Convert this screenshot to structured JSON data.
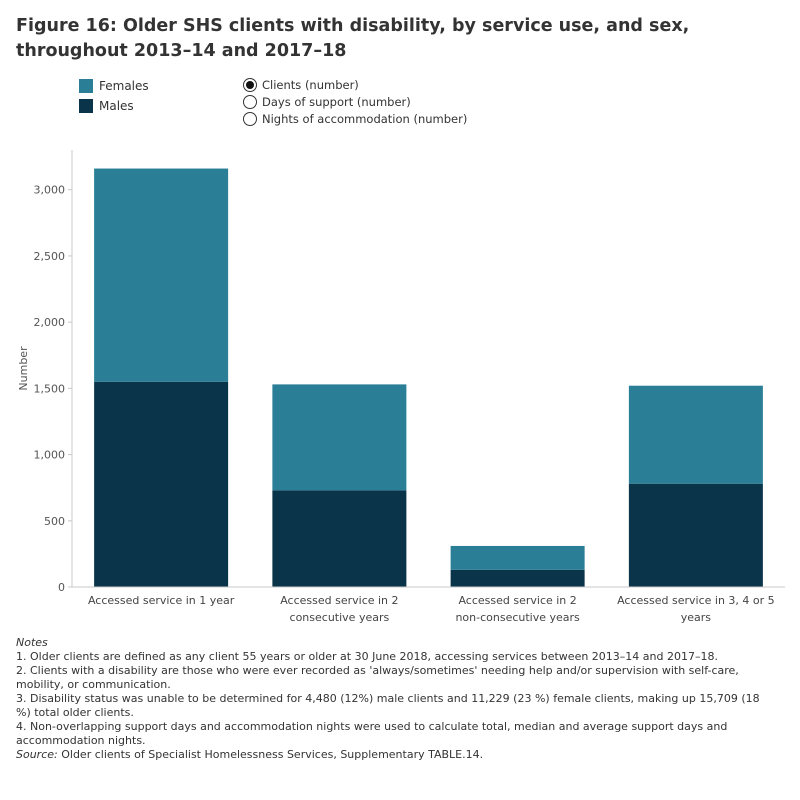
{
  "title": "Figure 16: Older SHS clients with disability, by service use, and sex, throughout 2013–14 and 2017–18",
  "legend": [
    {
      "label": "Females",
      "color": "#2a7f97"
    },
    {
      "label": "Males",
      "color": "#0a344a"
    }
  ],
  "measure_options": [
    {
      "label": "Clients (number)",
      "selected": true
    },
    {
      "label": "Days of support (number)",
      "selected": false
    },
    {
      "label": "Nights of accommodation (number)",
      "selected": false
    }
  ],
  "chart_data": {
    "type": "bar",
    "stacked": true,
    "categories": [
      [
        "Accessed service in 1 year"
      ],
      [
        "Accessed service in 2",
        "consecutive years"
      ],
      [
        "Accessed service in 2",
        "non-consecutive years"
      ],
      [
        "Accessed service in 3, 4 or 5",
        "years"
      ]
    ],
    "series": [
      {
        "name": "Males",
        "color": "#0a344a",
        "values": [
          1550,
          730,
          130,
          780
        ]
      },
      {
        "name": "Females",
        "color": "#2a7f97",
        "values": [
          1610,
          800,
          180,
          740
        ]
      }
    ],
    "ylabel": "Number",
    "ylim": [
      0,
      3300
    ],
    "yticks": [
      0,
      500,
      1000,
      1500,
      2000,
      2500,
      3000
    ],
    "ytick_labels": [
      "0",
      "500",
      "1,000",
      "1,500",
      "2,000",
      "2,500",
      "3,000"
    ],
    "grid": false
  },
  "notes": {
    "heading": "Notes",
    "items": [
      "1.  Older clients are defined as any client 55 years or older at 30 June 2018, accessing services between 2013–14 and 2017–18.",
      "2. Clients with a disability are those who were ever recorded as 'always/sometimes' needing help and/or supervision with self-care, mobility, or communication.",
      "3. Disability status was unable to be determined for 4,480 (12%) male clients and   11,229 (23 %) female clients, making up 15,709 (18 %) total older clients.",
      "4. Non-overlapping support days and accommodation nights were used to calculate total, median and average support days and accommodation nights."
    ],
    "source_label": "Source:",
    "source_text": " Older clients of Specialist Homelessness Services, Supplementary TABLE.14."
  }
}
